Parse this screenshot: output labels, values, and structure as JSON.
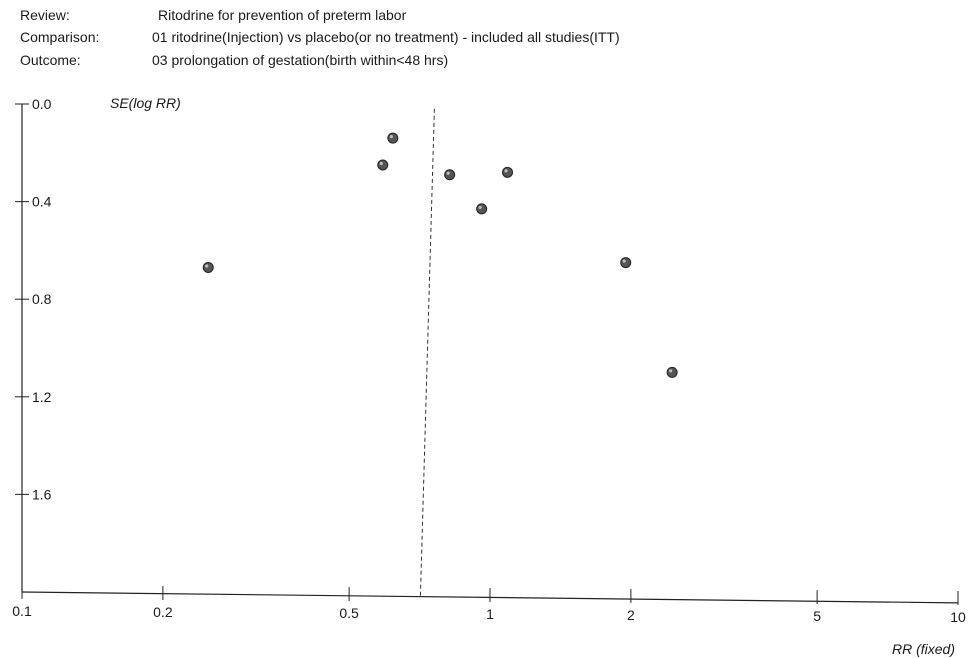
{
  "header": {
    "review_label": "Review:",
    "review_value": "Ritodrine for prevention of preterm labor",
    "comparison_label": "Comparison:",
    "comparison_value": "01 ritodrine(Injection) vs placebo(or no treatment) - included all studies(ITT)",
    "outcome_label": "Outcome:",
    "outcome_value": "03 prolongation of gestation(birth within<48 hrs)"
  },
  "chart_data": {
    "type": "scatter",
    "xlabel": "RR (fixed)",
    "ylabel": "SE(log RR)",
    "x_scale": "log",
    "xlim": [
      0.1,
      10
    ],
    "ylim": [
      0.0,
      2.0
    ],
    "y_inverted": true,
    "x_ticks": [
      {
        "value": 0.1,
        "label": "0.1"
      },
      {
        "value": 0.2,
        "label": "0.2"
      },
      {
        "value": 0.5,
        "label": "0.5"
      },
      {
        "value": 1,
        "label": "1"
      },
      {
        "value": 2,
        "label": "2"
      },
      {
        "value": 5,
        "label": "5"
      },
      {
        "value": 10,
        "label": "10"
      }
    ],
    "y_ticks": [
      {
        "value": 0.0,
        "label": "0.0"
      },
      {
        "value": 0.4,
        "label": "0.4"
      },
      {
        "value": 0.8,
        "label": "0.8"
      },
      {
        "value": 1.2,
        "label": "1.2"
      },
      {
        "value": 1.6,
        "label": "1.6"
      }
    ],
    "pooled_estimate": 0.71,
    "points": [
      {
        "rr": 0.62,
        "se": 0.14
      },
      {
        "rr": 0.59,
        "se": 0.25
      },
      {
        "rr": 0.82,
        "se": 0.29
      },
      {
        "rr": 0.96,
        "se": 0.43
      },
      {
        "rr": 1.09,
        "se": 0.28
      },
      {
        "rr": 0.25,
        "se": 0.67
      },
      {
        "rr": 1.95,
        "se": 0.65
      },
      {
        "rr": 2.45,
        "se": 1.1
      }
    ],
    "marker_color": "#555555",
    "grid": false
  }
}
